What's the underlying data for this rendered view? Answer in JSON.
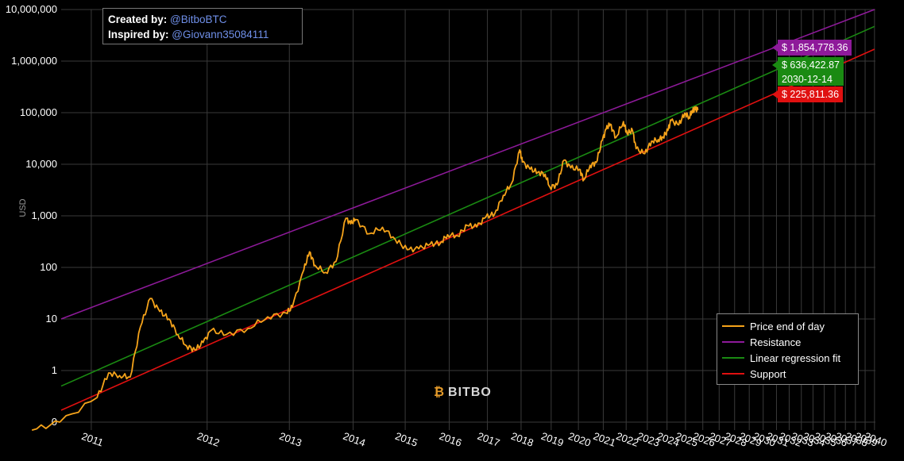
{
  "credits": {
    "created_label": "Created by:",
    "created_value": "@BitboBTC",
    "inspired_label": "Inspired by:",
    "inspired_value": "@Giovann35084111"
  },
  "watermark": {
    "logo_icon": "bitbo-logo-icon",
    "text": "BITBO"
  },
  "tags": {
    "resistance": "$ 1,854,778.36",
    "fit_value": "$ 636,422.87",
    "fit_date": "2030-12-14",
    "support": "$ 225,811.36"
  },
  "colors": {
    "price": "#f5a31a",
    "resistance": "#8e1a9a",
    "fit": "#1a8a12",
    "support": "#e01010",
    "grid": "#3a3a3a"
  },
  "chart_data": {
    "type": "line",
    "title": "",
    "xlabel": "",
    "ylabel": "USD",
    "y_scale": "log",
    "yticks": [
      {
        "value": 0.1,
        "label": "0"
      },
      {
        "value": 1,
        "label": "1"
      },
      {
        "value": 10,
        "label": "10"
      },
      {
        "value": 100,
        "label": "100"
      },
      {
        "value": 1000,
        "label": "1,000"
      },
      {
        "value": 10000,
        "label": "10,000"
      },
      {
        "value": 100000,
        "label": "100,000"
      },
      {
        "value": 1000000,
        "label": "1,000,000"
      },
      {
        "value": 10000000,
        "label": "10,000,000"
      }
    ],
    "xticks": [
      "2011",
      "2012",
      "2013",
      "2014",
      "2015",
      "2016",
      "2017",
      "2018",
      "2019",
      "2020",
      "2021",
      "2022",
      "2023",
      "2024",
      "2025",
      "2026",
      "2027",
      "2028",
      "2029",
      "2030",
      "2031",
      "2032",
      "2033",
      "2034",
      "2035",
      "2036",
      "2037",
      "2038",
      "2039",
      "2040"
    ],
    "x_scale": "log (time since genesis)",
    "legend": {
      "position": "bottom-right",
      "entries": [
        "Price end of day",
        "Resistance",
        "Linear regression fit",
        "Support"
      ]
    },
    "series": [
      {
        "name": "Price end of day",
        "points": [
          [
            "2010-08",
            0.07
          ],
          [
            "2010-10",
            0.1
          ],
          [
            "2011-01",
            0.3
          ],
          [
            "2011-02",
            0.9
          ],
          [
            "2011-03",
            0.8
          ],
          [
            "2011-04",
            0.75
          ],
          [
            "2011-05",
            7
          ],
          [
            "2011-06",
            25
          ],
          [
            "2011-07",
            14
          ],
          [
            "2011-08",
            10
          ],
          [
            "2011-09",
            5
          ],
          [
            "2011-10",
            3
          ],
          [
            "2011-11",
            2.5
          ],
          [
            "2011-12",
            3.5
          ],
          [
            "2012-01",
            6
          ],
          [
            "2012-03",
            5
          ],
          [
            "2012-06",
            6.5
          ],
          [
            "2012-09",
            11
          ],
          [
            "2012-12",
            13
          ],
          [
            "2013-01",
            17
          ],
          [
            "2013-03",
            90
          ],
          [
            "2013-04",
            200
          ],
          [
            "2013-05",
            110
          ],
          [
            "2013-07",
            80
          ],
          [
            "2013-09",
            130
          ],
          [
            "2013-11",
            900
          ],
          [
            "2013-12",
            700
          ],
          [
            "2014-01",
            850
          ],
          [
            "2014-04",
            450
          ],
          [
            "2014-07",
            600
          ],
          [
            "2014-10",
            350
          ],
          [
            "2015-01",
            220
          ],
          [
            "2015-04",
            230
          ],
          [
            "2015-07",
            280
          ],
          [
            "2015-10",
            300
          ],
          [
            "2015-12",
            430
          ],
          [
            "2016-03",
            410
          ],
          [
            "2016-06",
            650
          ],
          [
            "2016-09",
            610
          ],
          [
            "2016-12",
            950
          ],
          [
            "2017-03",
            1100
          ],
          [
            "2017-06",
            2500
          ],
          [
            "2017-09",
            4300
          ],
          [
            "2017-12",
            19000
          ],
          [
            "2018-01",
            11000
          ],
          [
            "2018-04",
            8000
          ],
          [
            "2018-07",
            7000
          ],
          [
            "2018-10",
            6400
          ],
          [
            "2018-12",
            3600
          ],
          [
            "2019-03",
            4000
          ],
          [
            "2019-06",
            12000
          ],
          [
            "2019-09",
            8500
          ],
          [
            "2020-01",
            8000
          ],
          [
            "2020-03",
            5000
          ],
          [
            "2020-06",
            9500
          ],
          [
            "2020-09",
            10800
          ],
          [
            "2020-12",
            29000
          ],
          [
            "2021-02",
            48000
          ],
          [
            "2021-04",
            60000
          ],
          [
            "2021-07",
            33000
          ],
          [
            "2021-11",
            67000
          ],
          [
            "2022-01",
            40000
          ],
          [
            "2022-04",
            45000
          ],
          [
            "2022-06",
            20000
          ],
          [
            "2022-11",
            16000
          ],
          [
            "2023-03",
            28000
          ],
          [
            "2023-07",
            30000
          ],
          [
            "2023-10",
            34000
          ],
          [
            "2024-01",
            45000
          ],
          [
            "2024-03",
            70000
          ],
          [
            "2024-08",
            58000
          ],
          [
            "2024-12",
            98000
          ],
          [
            "2025-03",
            82000
          ],
          [
            "2025-05",
            110000
          ],
          [
            "2025-07",
            118000
          ],
          [
            "2025-09",
            112000
          ]
        ]
      },
      {
        "name": "Resistance",
        "line": [
          [
            2010.8,
            10
          ],
          [
            2040,
            10000000
          ]
        ]
      },
      {
        "name": "Linear regression fit",
        "line": [
          [
            2010.8,
            0.5
          ],
          [
            2040,
            4700000
          ]
        ]
      },
      {
        "name": "Support",
        "line": [
          [
            2010.8,
            0.17
          ],
          [
            2040,
            1700000
          ]
        ]
      }
    ],
    "markers": [
      {
        "series": "Resistance",
        "date": "2030-12-14",
        "value": 1854778.36
      },
      {
        "series": "Linear regression fit",
        "date": "2030-12-14",
        "value": 636422.87
      },
      {
        "series": "Support",
        "date": "2030-12-14",
        "value": 225811.36
      }
    ]
  }
}
